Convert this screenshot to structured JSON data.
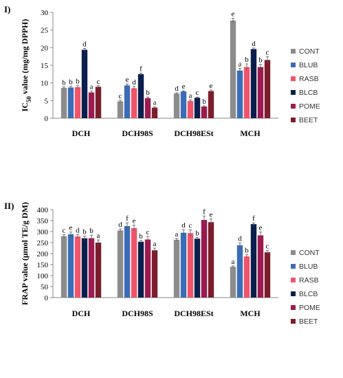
{
  "colors": {
    "CONT": "#8c8c8c",
    "BLUB": "#3a6db5",
    "RASB": "#f0546a",
    "BLCB": "#0b1f4d",
    "POME": "#9b1a4f",
    "BEET": "#7a1e2c"
  },
  "chart_data": [
    {
      "type": "bar",
      "panel_label": "I)",
      "ylabel_prefix": "IC",
      "ylabel_sub": "50",
      "ylabel_suffix": " value (mg/mg DPPH)",
      "categories": [
        "DCH",
        "DCH98S",
        "DCH98ESt",
        "MCH"
      ],
      "ylim": [
        0,
        30
      ],
      "yticks": [
        "0",
        "5",
        "10",
        "15",
        "20",
        "25",
        "30"
      ],
      "legend_position": "right",
      "series": [
        {
          "name": "CONT",
          "values": [
            8.6,
            4.8,
            7.0,
            27.7
          ],
          "errors": [
            0.3,
            0.3,
            0.2,
            0.6
          ],
          "letters": [
            "b",
            "c",
            "d",
            "e"
          ]
        },
        {
          "name": "BLUB",
          "values": [
            8.7,
            9.3,
            7.6,
            13.5
          ],
          "errors": [
            0.4,
            0.4,
            0.2,
            0.6
          ],
          "letters": [
            "b",
            "e",
            "e",
            "a"
          ]
        },
        {
          "name": "RASB",
          "values": [
            8.8,
            8.5,
            4.9,
            14.5
          ],
          "errors": [
            0.5,
            0.5,
            0.3,
            0.9
          ],
          "letters": [
            "b",
            "d",
            "a",
            "b"
          ]
        },
        {
          "name": "BLCB",
          "values": [
            19.4,
            12.5,
            5.8,
            19.6
          ],
          "errors": [
            0.4,
            0.3,
            0.2,
            0.3
          ],
          "letters": [
            "d",
            "f",
            "c",
            "d"
          ]
        },
        {
          "name": "POME",
          "values": [
            7.3,
            5.7,
            3.3,
            14.5
          ],
          "errors": [
            0.4,
            0.3,
            0.2,
            0.8
          ],
          "letters": [
            "a",
            "b",
            "b",
            "b"
          ]
        },
        {
          "name": "BEET",
          "values": [
            8.9,
            3.0,
            7.7,
            16.5
          ],
          "errors": [
            0.3,
            0.2,
            0.3,
            0.9
          ],
          "letters": [
            "c",
            "a",
            "e",
            "c"
          ]
        }
      ]
    },
    {
      "type": "bar",
      "panel_label": "II)",
      "ylabel_prefix": "FRAP value (μmol TE/g DM)",
      "ylabel_sub": "",
      "ylabel_suffix": "",
      "categories": [
        "DCH",
        "DCH98S",
        "DCH98ESt",
        "MCH"
      ],
      "ylim": [
        0,
        400
      ],
      "yticks": [
        "0",
        "50",
        "100",
        "150",
        "200",
        "250",
        "300",
        "350",
        "400"
      ],
      "legend_position": "right",
      "series": [
        {
          "name": "CONT",
          "values": [
            279,
            305,
            263,
            140
          ],
          "errors": [
            7,
            7,
            6,
            4
          ],
          "letters": [
            "c",
            "d",
            "a",
            "a"
          ]
        },
        {
          "name": "BLUB",
          "values": [
            288,
            325,
            295,
            238
          ],
          "errors": [
            10,
            15,
            14,
            10
          ],
          "letters": [
            "e",
            "f",
            "d",
            "d"
          ]
        },
        {
          "name": "RASB",
          "values": [
            278,
            316,
            293,
            187
          ],
          "errors": [
            8,
            14,
            15,
            8
          ],
          "letters": [
            "d",
            "e",
            "c",
            "b"
          ]
        },
        {
          "name": "BLCB",
          "values": [
            270,
            254,
            268,
            334
          ],
          "errors": [
            10,
            6,
            6,
            6
          ],
          "letters": [
            "b",
            "b",
            "b",
            "f"
          ]
        },
        {
          "name": "POME",
          "values": [
            270,
            264,
            353,
            283
          ],
          "errors": [
            14,
            14,
            18,
            15
          ],
          "letters": [
            "b",
            "c",
            "f",
            "e"
          ]
        },
        {
          "name": "BEET",
          "values": [
            250,
            215,
            343,
            206
          ],
          "errors": [
            12,
            10,
            15,
            8
          ],
          "letters": [
            "a",
            "a",
            "e",
            "c"
          ]
        }
      ]
    }
  ]
}
